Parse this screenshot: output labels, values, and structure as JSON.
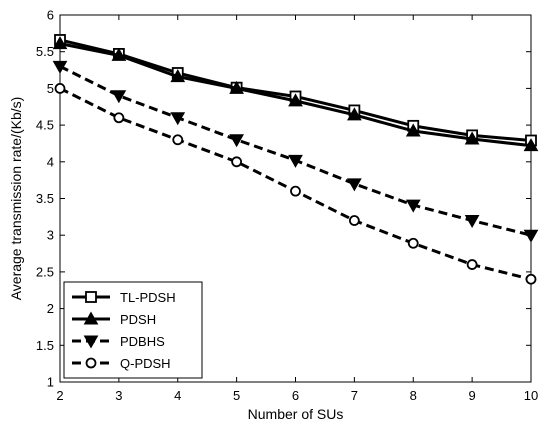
{
  "chart_data": {
    "type": "line",
    "xlabel": "Number of SUs",
    "ylabel": "Average transmission rate/(Kb/s)",
    "x": [
      2,
      3,
      4,
      5,
      6,
      7,
      8,
      9,
      10
    ],
    "xlim": [
      2,
      10
    ],
    "ylim": [
      1,
      6
    ],
    "xticks": [
      "2",
      "3",
      "4",
      "5",
      "6",
      "7",
      "8",
      "9",
      "10"
    ],
    "yticks": [
      "1",
      "1.5",
      "2",
      "2.5",
      "3",
      "3.5",
      "4",
      "4.5",
      "5",
      "5.5",
      "6"
    ],
    "grid": false,
    "legend_position": "bottom-left",
    "series": [
      {
        "name": "TL-PDSH",
        "marker": "square",
        "line_style": "solid",
        "values": [
          5.66,
          5.47,
          5.21,
          5.01,
          4.89,
          4.7,
          4.49,
          4.36,
          4.29
        ]
      },
      {
        "name": "PDSH",
        "marker": "triangle-up",
        "line_style": "solid",
        "values": [
          5.61,
          5.45,
          5.16,
          5.0,
          4.83,
          4.64,
          4.42,
          4.31,
          4.22
        ]
      },
      {
        "name": "PDBHS",
        "marker": "triangle-down",
        "line_style": "dashed",
        "values": [
          5.3,
          4.9,
          4.6,
          4.3,
          4.02,
          3.7,
          3.41,
          3.2,
          3.0
        ]
      },
      {
        "name": "Q-PDSH",
        "marker": "circle",
        "line_style": "dashed",
        "values": [
          5.0,
          4.6,
          4.3,
          4.0,
          3.6,
          3.2,
          2.89,
          2.6,
          2.4
        ]
      }
    ]
  }
}
